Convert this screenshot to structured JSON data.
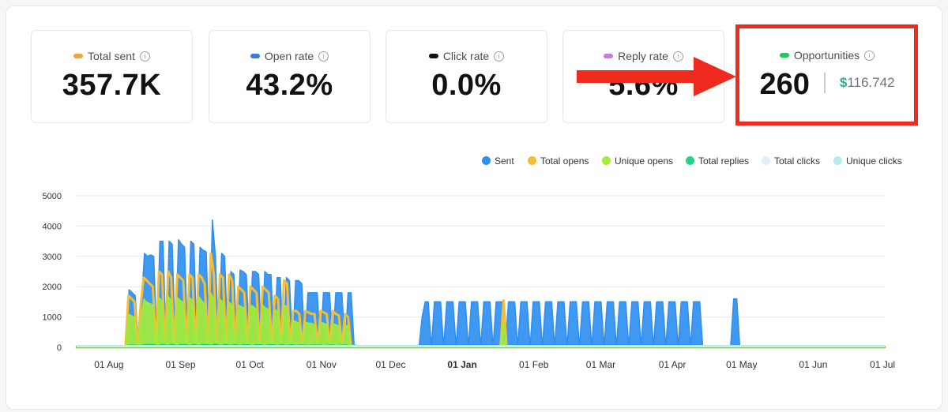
{
  "colors": {
    "sent": "#2f8ff0",
    "total_opens": "#f3bd36",
    "unique_opens": "#a2ec39",
    "total_replies": "#22d38a",
    "total_clicks": "#e2edf5",
    "unique_clicks": "#b6ecec",
    "highlight": "#ef2b1f",
    "money": "#1fb58a"
  },
  "metrics": [
    {
      "label": "Total sent",
      "value": "357.7K",
      "color": "#f2a33a",
      "icon": "info-icon"
    },
    {
      "label": "Open rate",
      "value": "43.2%",
      "color": "#3b7be0",
      "icon": "info-icon"
    },
    {
      "label": "Click rate",
      "value": "0.0%",
      "color": "#111111",
      "icon": "info-icon"
    },
    {
      "label": "Reply rate",
      "value": "5.6%",
      "color": "#c67be0",
      "icon": "info-icon"
    }
  ],
  "opportunities": {
    "label": "Opportunities",
    "value": "260",
    "currency": "$",
    "amount": "116.742",
    "color": "#22c55e"
  },
  "annotation": {
    "arrow": "red-arrow-pointing-right",
    "box": "red-highlight-box"
  },
  "legend": [
    "Sent",
    "Total opens",
    "Unique opens",
    "Total replies",
    "Total clicks",
    "Unique clicks"
  ],
  "chart_data": {
    "type": "area",
    "title": "",
    "xlabel": "",
    "ylabel": "",
    "ylim": [
      0,
      5000
    ],
    "yticks": [
      "0",
      "1000",
      "2000",
      "3000",
      "4000",
      "5000"
    ],
    "xticks": [
      "01 Aug",
      "01 Sep",
      "01 Oct",
      "01 Nov",
      "01 Dec",
      "01 Jan",
      "01 Feb",
      "01 Mar",
      "01 Apr",
      "01 May",
      "01 Jun",
      "01 Jul"
    ],
    "bold_tick": "01 Jan",
    "grid": true,
    "legend_position": "top-right",
    "x_start": "2023-07-18",
    "series": [
      {
        "name": "Sent",
        "color": "#2f8ff0",
        "values": [
          0,
          0,
          0,
          0,
          0,
          0,
          0,
          0,
          0,
          0,
          0,
          0,
          0,
          0,
          0,
          0,
          0,
          1900,
          1800,
          1700,
          0,
          1500,
          3100,
          3000,
          3050,
          3000,
          0,
          3500,
          3500,
          0,
          3500,
          3400,
          0,
          3550,
          3400,
          3300,
          0,
          3500,
          3400,
          0,
          3300,
          3200,
          3150,
          0,
          4200,
          3000,
          0,
          3100,
          3000,
          0,
          2500,
          2400,
          0,
          2550,
          2500,
          2400,
          0,
          2500,
          2500,
          2400,
          0,
          2500,
          2400,
          2400,
          0,
          2300,
          2300,
          0,
          2300,
          2200,
          0,
          2200,
          2200,
          2100,
          0,
          1800,
          1800,
          1800,
          1800,
          0,
          1800,
          1800,
          1800,
          0,
          1800,
          1800,
          1800,
          0,
          1800,
          1800,
          0,
          0,
          0,
          0,
          0,
          0,
          0,
          0,
          0,
          0,
          0,
          0,
          0,
          0,
          0,
          0,
          0,
          0,
          0,
          0,
          0,
          0,
          1000,
          1500,
          1500,
          0,
          1500,
          1500,
          1500,
          0,
          1500,
          1500,
          1500,
          0,
          1500,
          1500,
          1500,
          0,
          1500,
          1500,
          1500,
          0,
          1500,
          1500,
          1500,
          0,
          1500,
          1500,
          1500,
          0,
          1500,
          1500,
          1500,
          0,
          1500,
          1500,
          1500,
          0,
          1500,
          1500,
          1500,
          0,
          1500,
          1500,
          1500,
          0,
          1500,
          1500,
          1500,
          0,
          1500,
          1500,
          1500,
          0,
          1500,
          1500,
          1500,
          0,
          1500,
          1500,
          1500,
          0,
          1500,
          1500,
          1500,
          0,
          1500,
          1500,
          1500,
          0,
          1500,
          1500,
          1500,
          0,
          1500,
          1500,
          1500,
          0,
          1500,
          1500,
          1500,
          0,
          1500,
          1500,
          1500,
          0,
          1500,
          1500,
          1500,
          0,
          1500,
          1500,
          1500,
          0,
          0,
          0,
          0,
          0,
          0,
          0,
          0,
          0,
          0,
          1600,
          1600,
          0,
          0,
          0,
          0,
          0,
          0,
          0,
          0,
          0,
          0,
          0,
          0,
          0,
          0,
          0,
          0,
          0,
          0,
          0,
          0,
          0,
          0,
          0,
          0,
          0,
          0,
          0,
          0,
          0,
          0,
          0,
          0,
          0,
          0,
          0,
          0,
          0,
          0,
          0,
          0,
          0,
          0,
          0,
          0,
          0,
          0,
          0,
          0
        ]
      },
      {
        "name": "Total opens",
        "color": "#f3bd36",
        "values": [
          0,
          0,
          0,
          0,
          0,
          0,
          0,
          0,
          0,
          0,
          0,
          0,
          0,
          0,
          0,
          0,
          0,
          1700,
          1600,
          1500,
          0,
          1400,
          2300,
          2200,
          2100,
          2000,
          0,
          2500,
          2400,
          0,
          2500,
          2300,
          0,
          2400,
          2300,
          2200,
          0,
          2400,
          2300,
          0,
          2400,
          2300,
          2100,
          0,
          3100,
          2400,
          0,
          2400,
          2300,
          0,
          2400,
          2200,
          0,
          2000,
          1900,
          1800,
          0,
          2000,
          1900,
          1800,
          0,
          2000,
          1900,
          1800,
          0,
          1700,
          1600,
          0,
          2200,
          2100,
          0,
          1200,
          1200,
          1100,
          0,
          1200,
          1150,
          1100,
          1100,
          0,
          1200,
          1150,
          1100,
          0,
          1200,
          1100,
          1050,
          0,
          1100,
          1000,
          0,
          0,
          0,
          0,
          0,
          0,
          0,
          0,
          0,
          0,
          0,
          0,
          0,
          0,
          0,
          0,
          0,
          0,
          0,
          0,
          0,
          0,
          0,
          0,
          0,
          0,
          0,
          0,
          0,
          0,
          0,
          0,
          0,
          0,
          0,
          0,
          0,
          0,
          0,
          0,
          0,
          0,
          0,
          0,
          0,
          0,
          0,
          0,
          0,
          0,
          1550,
          0,
          0,
          0,
          0,
          0,
          0,
          0,
          0,
          0,
          0,
          0,
          0,
          0,
          0,
          0,
          0,
          0,
          0,
          0,
          0,
          0,
          0,
          0,
          0,
          0,
          0,
          0,
          0,
          0,
          0,
          0,
          0,
          0,
          0,
          0,
          0,
          0,
          0,
          0,
          0,
          0,
          0,
          0,
          0,
          0,
          0,
          0,
          0,
          0,
          0,
          0,
          0,
          0,
          0,
          0,
          0,
          0,
          0,
          0,
          0,
          0,
          0,
          0,
          0,
          0,
          0,
          0,
          0,
          0,
          0,
          0,
          0,
          0,
          0,
          0,
          0,
          0,
          0,
          0,
          0,
          0,
          0,
          0,
          0,
          0,
          0,
          0,
          0,
          0,
          0,
          0,
          0,
          0,
          0,
          0,
          0,
          0,
          0,
          0,
          0,
          0,
          0,
          0,
          0,
          0,
          0,
          0,
          0,
          0,
          0,
          0,
          0,
          0,
          0,
          0,
          0,
          0,
          0,
          0,
          0,
          0,
          0,
          0,
          0,
          0
        ]
      },
      {
        "name": "Unique opens",
        "color": "#a2ec39",
        "values": [
          0,
          0,
          0,
          0,
          0,
          0,
          0,
          0,
          0,
          0,
          0,
          0,
          0,
          0,
          0,
          0,
          0,
          1100,
          1050,
          1000,
          0,
          950,
          1600,
          1500,
          1450,
          1400,
          0,
          1650,
          1550,
          0,
          1700,
          1550,
          0,
          1650,
          1550,
          1500,
          0,
          1650,
          1550,
          0,
          1700,
          1550,
          1450,
          0,
          1800,
          1600,
          0,
          1600,
          1500,
          0,
          1500,
          1400,
          0,
          1400,
          1350,
          1300,
          0,
          1400,
          1350,
          1250,
          0,
          1400,
          1300,
          1250,
          0,
          1250,
          1200,
          0,
          1400,
          1350,
          0,
          900,
          850,
          800,
          0,
          850,
          800,
          800,
          750,
          0,
          850,
          800,
          750,
          0,
          800,
          750,
          700,
          0,
          750,
          700,
          0,
          0,
          0,
          0,
          0,
          0,
          0,
          0,
          0,
          0,
          0,
          0,
          0,
          0,
          0,
          0,
          0,
          0,
          0,
          0,
          0,
          0,
          0,
          0,
          0,
          0,
          0,
          0,
          0,
          0,
          0,
          0,
          0,
          0,
          0,
          0,
          0,
          0,
          0,
          0,
          0,
          0,
          0,
          0,
          0,
          0,
          0,
          0,
          0,
          0,
          900,
          0,
          0,
          0,
          0,
          0,
          0,
          0,
          0,
          0,
          0,
          0,
          0,
          0,
          0,
          0,
          0,
          0,
          0,
          0,
          0,
          0,
          0,
          0,
          0,
          0,
          0,
          0,
          0,
          0,
          0,
          0,
          0,
          0,
          0,
          0,
          0,
          0,
          0,
          0,
          0,
          0,
          0,
          0,
          0,
          0,
          0,
          0,
          0,
          0,
          0,
          0,
          0,
          0,
          0,
          0,
          0,
          0,
          0,
          0,
          0,
          0,
          0,
          0,
          0,
          0,
          0,
          0,
          0,
          0,
          0,
          0,
          0,
          0,
          0,
          0,
          0,
          0,
          0,
          0,
          0,
          0,
          0,
          0,
          0,
          0,
          0,
          0,
          0,
          0,
          0,
          0,
          0,
          0,
          0,
          0,
          0,
          0,
          0,
          0,
          0,
          0,
          0,
          0,
          0,
          0,
          0,
          0,
          0,
          0,
          0,
          0,
          0,
          0,
          0,
          0,
          0,
          0,
          0,
          0,
          0,
          0,
          0,
          0,
          0,
          0
        ]
      },
      {
        "name": "Total replies",
        "color": "#22d38a",
        "values": [
          50,
          50,
          50,
          50,
          50,
          50,
          50,
          50,
          50,
          50,
          50,
          50,
          50,
          50,
          50,
          50,
          50,
          80,
          80,
          80,
          50,
          80,
          100,
          100,
          100,
          100,
          50,
          100,
          100,
          50,
          100,
          100,
          50,
          100,
          100,
          100,
          50,
          100,
          100,
          50,
          100,
          100,
          100,
          50,
          120,
          100,
          50,
          100,
          100,
          50,
          100,
          100,
          50,
          90,
          90,
          90,
          50,
          90,
          90,
          90,
          50,
          90,
          90,
          90,
          50,
          90,
          90,
          50,
          90,
          90,
          50,
          80,
          80,
          80,
          50,
          80,
          80,
          80,
          80,
          50,
          80,
          80,
          80,
          50,
          80,
          80,
          80,
          50,
          80,
          80,
          50,
          50,
          50,
          50,
          50,
          50,
          50,
          50,
          50,
          50,
          50,
          50,
          50,
          50,
          50,
          50,
          50,
          50,
          50,
          50,
          50,
          50,
          60,
          60,
          60,
          50,
          60,
          60,
          60,
          50,
          60,
          60,
          60,
          50,
          60,
          60,
          60,
          50,
          60,
          60,
          60,
          50,
          60,
          60,
          60,
          50,
          60,
          60,
          60,
          50,
          60,
          60,
          60,
          50,
          60,
          60,
          60,
          50,
          60,
          60,
          60,
          50,
          60,
          60,
          60,
          50,
          60,
          60,
          60,
          50,
          60,
          60,
          60,
          50,
          60,
          60,
          60,
          50,
          60,
          60,
          60,
          50,
          60,
          60,
          60,
          50,
          60,
          60,
          60,
          50,
          60,
          60,
          60,
          50,
          60,
          60,
          60,
          50,
          60,
          60,
          60,
          50,
          60,
          60,
          60,
          50,
          60,
          60,
          60,
          50,
          50,
          50,
          50,
          50,
          50,
          50,
          50,
          50,
          50,
          50,
          50,
          50,
          50,
          50,
          50,
          50,
          50,
          50,
          50,
          50,
          50,
          50,
          50,
          50,
          50,
          50,
          50,
          50,
          50,
          50,
          50,
          50,
          50,
          50,
          50,
          50,
          50,
          50,
          50,
          50,
          50,
          50,
          50,
          50,
          50,
          50,
          50,
          50,
          50,
          50,
          50,
          50,
          50,
          50,
          50,
          50,
          50,
          50,
          50
        ]
      },
      {
        "name": "Total clicks",
        "color": "#e2edf5",
        "values": [
          0
        ]
      },
      {
        "name": "Unique clicks",
        "color": "#b6ecec",
        "values": [
          0
        ]
      }
    ]
  }
}
